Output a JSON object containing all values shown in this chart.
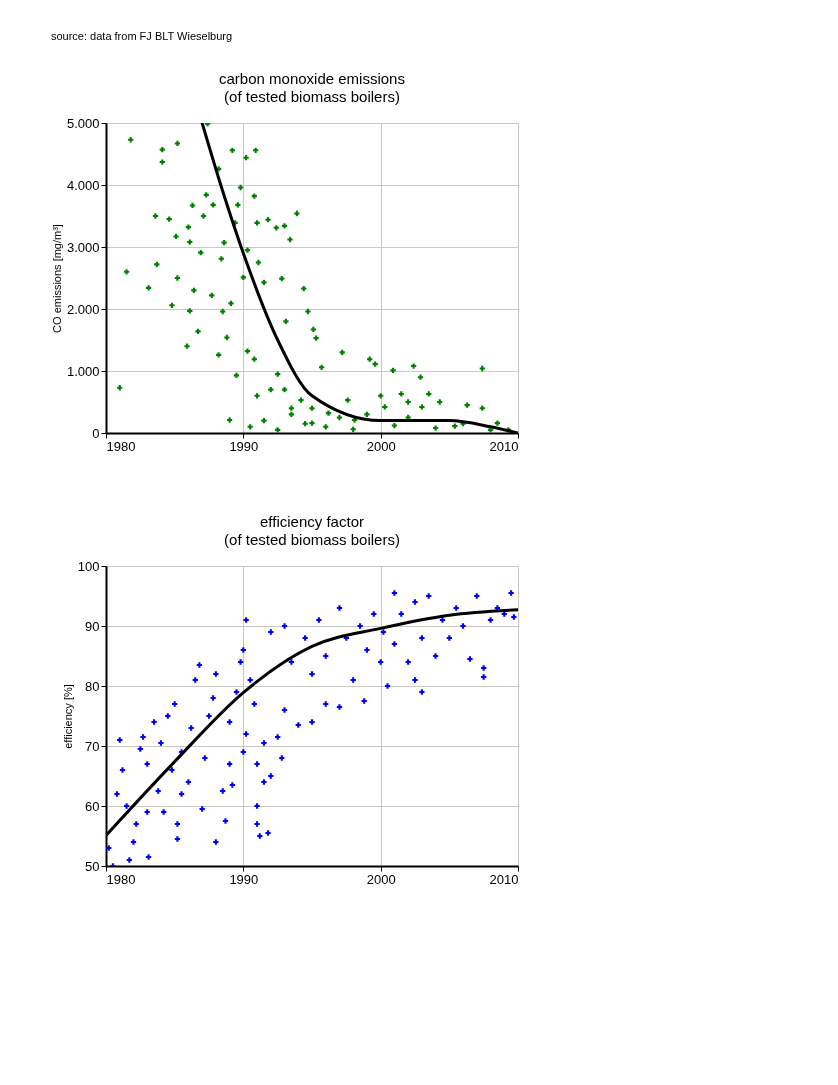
{
  "chart_data": [
    {
      "type": "scatter",
      "title": "carbon monoxide emissions",
      "subtitle": "(of tested biomass boilers)",
      "ylabel": "CO emissions [mg/m³]",
      "annotations": [
        "source: data from FJ BLT Wieselburg"
      ],
      "xlim": [
        1980,
        2010
      ],
      "xticks": [
        1980,
        1990,
        2000,
        2010
      ],
      "ylim": [
        0,
        5000
      ],
      "yticks": [
        0,
        {
          "value": 1000,
          "label": "1.000"
        },
        {
          "value": 2000,
          "label": "2.000"
        },
        {
          "value": 3000,
          "label": "3.000"
        },
        {
          "value": 4000,
          "label": "4.000"
        },
        {
          "value": 5000,
          "label": "5.000"
        }
      ],
      "grid": true,
      "series": [
        {
          "marker": "cross",
          "color": "#008000",
          "x": [
            1981.0,
            1981.5,
            1981.8,
            1983.1,
            1983.6,
            1983.7,
            1984.1,
            1984.1,
            1984.6,
            1984.8,
            1985.1,
            1985.2,
            1985.2,
            1986.0,
            1986.1,
            1985.9,
            1986.1,
            1986.3,
            1986.4,
            1986.7,
            1986.9,
            1987.1,
            1987.3,
            1987.4,
            1987.7,
            1987.8,
            1988.2,
            1988.2,
            1988.4,
            1988.5,
            1988.6,
            1988.8,
            1989.0,
            1989.1,
            1989.2,
            1989.4,
            1989.6,
            1989.5,
            1989.8,
            1990.0,
            1990.2,
            1990.3,
            1990.3,
            1990.8,
            1990.9,
            1991.0,
            1991.1,
            1990.8,
            1991.5,
            1991.8,
            1992.0,
            1992.4,
            1992.5,
            1992.8,
            1993.0,
            1993.1,
            1993.4,
            1993.5,
            1993.9,
            1994.4,
            1994.7,
            1995.1,
            1995.3,
            1994.2,
            1995.0,
            1995.7,
            1996.2,
            1997.2,
            1997.6,
            1998.1,
            1999.2,
            1999.6,
            2000.3,
            2000.9,
            2001.5,
            2002.4,
            2002.9,
            2003.0,
            2003.5,
            2004.3,
            2005.4,
            2006.3,
            2007.4,
            2007.4,
            2008.5,
            2009.3,
            1990.5,
            1991.5,
            1992.5,
            1993.5,
            1994.5,
            1996.0,
            1997.0,
            1998.0,
            1999.0,
            2001.0,
            2002.0,
            2004.0,
            2006.0,
            2008.0,
            1991.0,
            1993.0,
            1995.0,
            2000.0,
            2002.0
          ],
          "values": [
            730,
            2600,
            4730,
            2340,
            3500,
            2720,
            4570,
            4370,
            3450,
            2060,
            3170,
            4670,
            2500,
            3320,
            3080,
            1400,
            1970,
            3670,
            2300,
            1640,
            2910,
            3500,
            3840,
            4990,
            2220,
            3680,
            1260,
            4260,
            2810,
            1960,
            3070,
            1540,
            210,
            2090,
            4560,
            3390,
            3680,
            930,
            3960,
            2510,
            4440,
            2950,
            1320,
            3820,
            4560,
            3390,
            2750,
            1190,
            2430,
            3440,
            700,
            3310,
            950,
            2490,
            3340,
            1800,
            3120,
            400,
            3540,
            2330,
            1960,
            1670,
            1530,
            530,
            160,
            1060,
            320,
            1300,
            530,
            210,
            1190,
            1110,
            420,
            1010,
            630,
            1080,
            900,
            420,
            630,
            500,
            110,
            450,
            400,
            1040,
            160,
            50,
            100,
            200,
            50,
            300,
            150,
            100,
            250,
            60,
            300,
            120,
            250,
            80,
            150,
            50,
            600,
            700,
            400,
            600,
            500
          ]
        },
        {
          "type": "line",
          "marker": "none",
          "line_style": "solid",
          "color": "#000000",
          "x": [
            1987,
            1988.5,
            1990,
            1992.5,
            1995,
            2000,
            2005,
            2008,
            2010
          ],
          "values": [
            5000,
            3900,
            2900,
            1500,
            600,
            200,
            200,
            100,
            0
          ]
        }
      ]
    },
    {
      "type": "scatter",
      "title": "efficiency factor",
      "subtitle": "(of tested biomass boilers)",
      "ylabel": "efficiency [%]",
      "xlim": [
        1980,
        2010
      ],
      "xticks": [
        1980,
        1990,
        2000,
        2010
      ],
      "ylim": [
        50,
        100
      ],
      "yticks": [
        50,
        60,
        70,
        80,
        90,
        100
      ],
      "grid": true,
      "series": [
        {
          "marker": "cross",
          "color": "#0000ff",
          "x": [
            1980.2,
            1980.5,
            1980.8,
            1981,
            1981.2,
            1981.5,
            1981.7,
            1982,
            1982.2,
            1982.5,
            1982.7,
            1983,
            1983,
            1983.1,
            1983.5,
            1983.8,
            1984,
            1984.2,
            1984.5,
            1984.8,
            1985,
            1985.2,
            1985.2,
            1985.5,
            1985.5,
            1986,
            1986.5,
            1986.2,
            1986.8,
            1987,
            1987.2,
            1987.5,
            1987.8,
            1988,
            1988,
            1988.5,
            1988.7,
            1989,
            1989,
            1989.2,
            1989.5,
            1989.8,
            1990,
            1990,
            1990.2,
            1990.2,
            1990.5,
            1990.8,
            1991,
            1991,
            1991,
            1991.2,
            1991.5,
            1991.5,
            1991.8,
            1992,
            1992,
            1992.5,
            1992.8,
            1993,
            1993,
            1993.5,
            1994,
            1994.5,
            1995,
            1995,
            1995.5,
            1996,
            1996,
            1997,
            1997,
            1997.5,
            1998,
            1998.5,
            1998.8,
            1999,
            1999.5,
            2000,
            2000.2,
            2000.5,
            2001,
            2001,
            2001.5,
            2002,
            2002.5,
            2002.5,
            2003,
            2003,
            2003.5,
            2004,
            2004.5,
            2005,
            2005.5,
            2006,
            2006.5,
            2007,
            2007.5,
            2007.5,
            2008,
            2008.5,
            2009,
            2009.5,
            2009.7
          ],
          "values": [
            53,
            50,
            62,
            71,
            66,
            60,
            51,
            54,
            57,
            69.5,
            71.5,
            59,
            67,
            51.5,
            74,
            62.5,
            70.5,
            59,
            75,
            66,
            77,
            57,
            54.5,
            62,
            69,
            64,
            81,
            73,
            83.5,
            59.5,
            68,
            75,
            78,
            54,
            82,
            62.5,
            57.5,
            67,
            74,
            63.5,
            79,
            84,
            69,
            86,
            72,
            91,
            81,
            77,
            67,
            60,
            57,
            55,
            64,
            70.5,
            55.5,
            65,
            89,
            71.5,
            68,
            76,
            90,
            84,
            73.5,
            88,
            74,
            82,
            91,
            77,
            85,
            76.5,
            93,
            88,
            81,
            90,
            77.5,
            86,
            92,
            84,
            89,
            80,
            95.5,
            87,
            92,
            84,
            81,
            94,
            79,
            88,
            95,
            85,
            91,
            88,
            93,
            90,
            84.5,
            95,
            81.5,
            83,
            91,
            93,
            92,
            95.5,
            91.5
          ]
        },
        {
          "type": "line",
          "marker": "none",
          "line_style": "solid",
          "color": "#000000",
          "x": [
            1980,
            1985,
            1990,
            1995,
            2000,
            2005,
            2010
          ],
          "values": [
            55.1,
            67.4,
            78.9,
            86.6,
            89.6,
            91.8,
            92.7
          ]
        }
      ]
    }
  ]
}
